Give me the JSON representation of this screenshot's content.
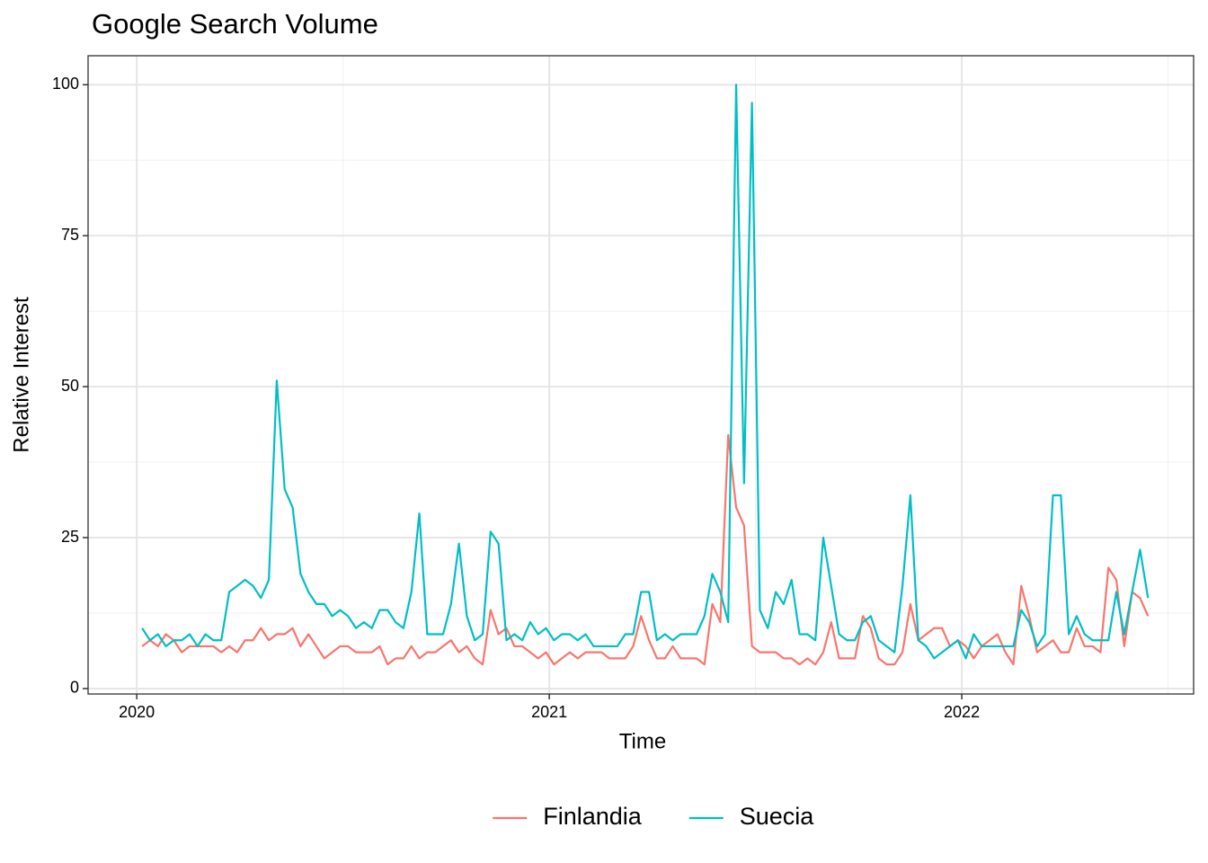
{
  "chart_data": {
    "type": "line",
    "title": "Google Search Volume",
    "x_label": "Time",
    "y_label": "Relative Interest",
    "x": [
      2020.013,
      2020.0322,
      2020.0514,
      2020.0706,
      2020.0898,
      2020.109,
      2020.1282,
      2020.1474,
      2020.1666,
      2020.1858,
      2020.205,
      2020.2242,
      2020.2434,
      2020.2626,
      2020.2818,
      2020.301,
      2020.3202,
      2020.3394,
      2020.3586,
      2020.3778,
      2020.397,
      2020.4162,
      2020.4354,
      2020.4546,
      2020.4738,
      2020.493,
      2020.5122,
      2020.5314,
      2020.5506,
      2020.5698,
      2020.589,
      2020.6082,
      2020.6274,
      2020.6466,
      2020.6658,
      2020.685,
      2020.7042,
      2020.7234,
      2020.7426,
      2020.7618,
      2020.781,
      2020.8002,
      2020.8194,
      2020.8386,
      2020.8578,
      2020.877,
      2020.8962,
      2020.9154,
      2020.9346,
      2020.9538,
      2020.973,
      2020.9922,
      2021.0114,
      2021.0306,
      2021.0498,
      2021.069,
      2021.0882,
      2021.1074,
      2021.1266,
      2021.1458,
      2021.165,
      2021.1842,
      2021.2034,
      2021.2226,
      2021.2418,
      2021.261,
      2021.2802,
      2021.2994,
      2021.3186,
      2021.3378,
      2021.357,
      2021.3762,
      2021.3954,
      2021.4146,
      2021.4338,
      2021.453,
      2021.4722,
      2021.4914,
      2021.5106,
      2021.5298,
      2021.549,
      2021.5682,
      2021.5874,
      2021.6066,
      2021.6258,
      2021.645,
      2021.6642,
      2021.6834,
      2021.7026,
      2021.7218,
      2021.741,
      2021.7602,
      2021.7794,
      2021.7986,
      2021.8178,
      2021.837,
      2021.8562,
      2021.8754,
      2021.8946,
      2021.9138,
      2021.933,
      2021.9522,
      2021.9714,
      2021.9906,
      2022.0098,
      2022.029,
      2022.0482,
      2022.0674,
      2022.0866,
      2022.1058,
      2022.125,
      2022.1442,
      2022.1634,
      2022.1826,
      2022.2018,
      2022.221,
      2022.2402,
      2022.2594,
      2022.2786,
      2022.2978,
      2022.317,
      2022.3362,
      2022.3554,
      2022.3746,
      2022.3938,
      2022.413,
      2022.4322,
      2022.4514
    ],
    "series": [
      {
        "name": "Finlandia",
        "color": "#F8766D",
        "values": [
          7,
          8,
          7,
          9,
          8,
          6,
          7,
          7,
          7,
          7,
          6,
          7,
          6,
          8,
          8,
          10,
          8,
          9,
          9,
          10,
          7,
          9,
          7,
          5,
          6,
          7,
          7,
          6,
          6,
          6,
          7,
          4,
          5,
          5,
          7,
          5,
          6,
          6,
          7,
          8,
          6,
          7,
          5,
          4,
          13,
          9,
          10,
          7,
          7,
          6,
          5,
          6,
          4,
          5,
          6,
          5,
          6,
          6,
          6,
          5,
          5,
          5,
          7,
          12,
          8,
          5,
          5,
          7,
          5,
          5,
          5,
          4,
          14,
          11,
          42,
          30,
          27,
          7,
          6,
          6,
          6,
          5,
          5,
          4,
          5,
          4,
          6,
          11,
          5,
          5,
          5,
          12,
          10,
          5,
          4,
          4,
          6,
          14,
          8,
          9,
          10,
          10,
          7,
          8,
          7,
          5,
          7,
          8,
          9,
          6,
          4,
          17,
          12,
          6,
          7,
          8,
          6,
          6,
          10,
          7,
          7,
          6,
          20,
          18,
          7,
          16,
          15,
          12
        ]
      },
      {
        "name": "Suecia",
        "color": "#00BFC4",
        "values": [
          10,
          8,
          9,
          7,
          8,
          8,
          9,
          7,
          9,
          8,
          8,
          16,
          17,
          18,
          17,
          15,
          18,
          51,
          33,
          30,
          19,
          16,
          14,
          14,
          12,
          13,
          12,
          10,
          11,
          10,
          13,
          13,
          11,
          10,
          16,
          29,
          9,
          9,
          9,
          14,
          24,
          12,
          8,
          9,
          26,
          24,
          8,
          9,
          8,
          11,
          9,
          10,
          8,
          9,
          9,
          8,
          9,
          7,
          7,
          7,
          7,
          9,
          9,
          16,
          16,
          8,
          9,
          8,
          9,
          9,
          9,
          12,
          19,
          16,
          11,
          100,
          34,
          97,
          13,
          10,
          16,
          14,
          18,
          9,
          9,
          8,
          25,
          17,
          9,
          8,
          8,
          11,
          12,
          8,
          7,
          6,
          17,
          32,
          8,
          7,
          5,
          6,
          7,
          8,
          5,
          9,
          7,
          7,
          7,
          7,
          7,
          13,
          11,
          7,
          9,
          32,
          32,
          9,
          12,
          9,
          8,
          8,
          8,
          16,
          9,
          16,
          23,
          15
        ]
      }
    ],
    "xlim": [
      2019.882,
      2022.562
    ],
    "xticks": [
      2020,
      2021,
      2022
    ],
    "ylim": [
      -0.9,
      104.8
    ],
    "yticks": [
      0,
      25,
      50,
      75,
      100
    ],
    "grid": true,
    "legend": "bottom"
  }
}
